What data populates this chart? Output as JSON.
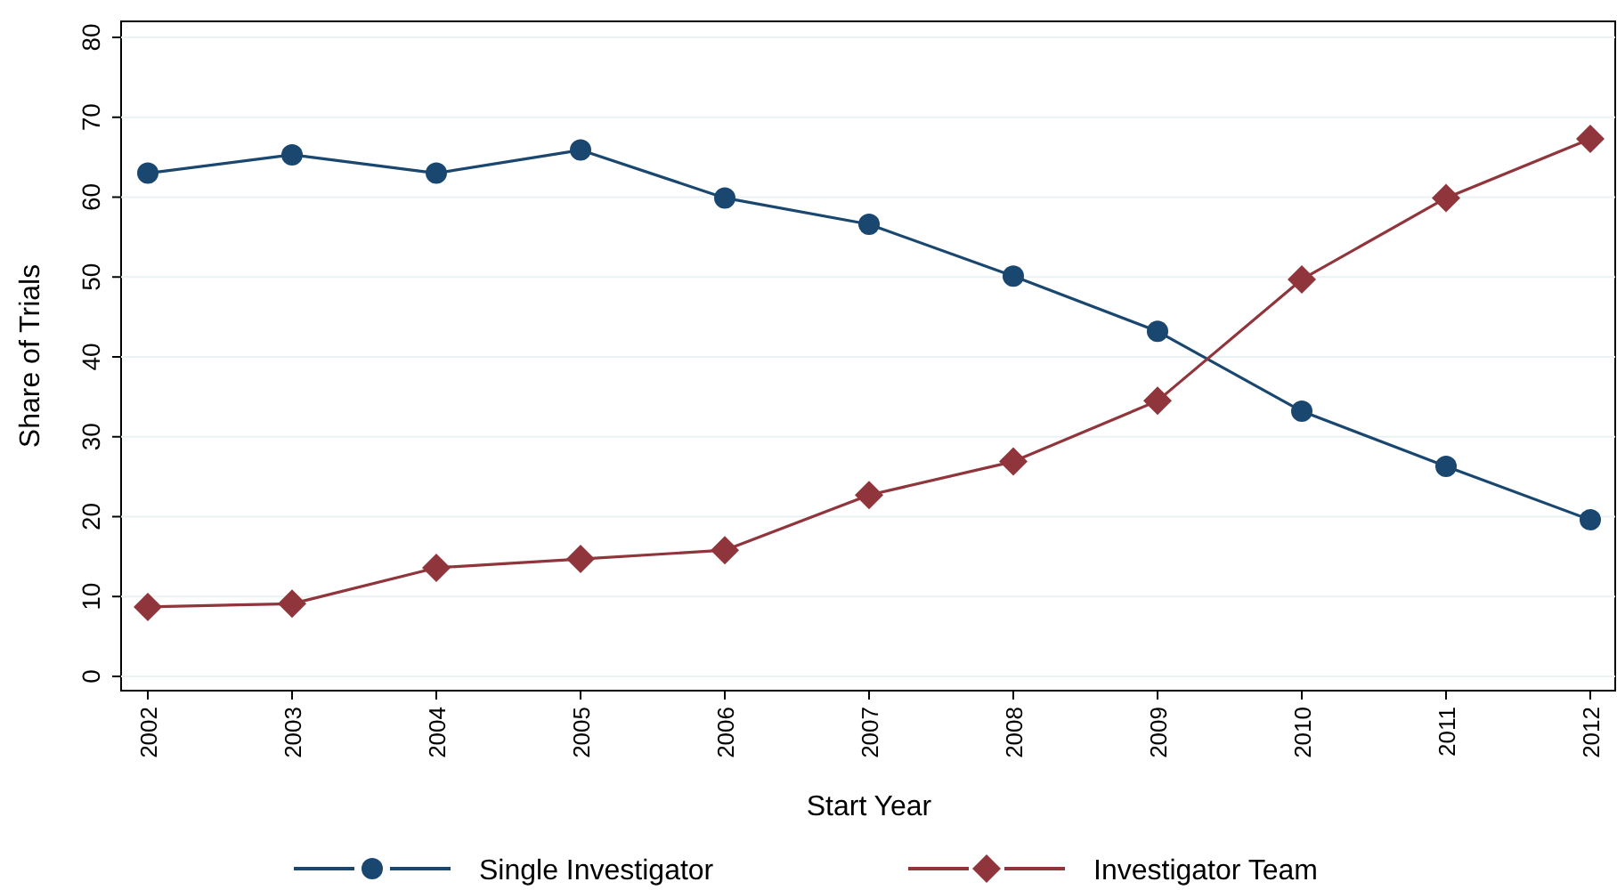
{
  "chart_data": {
    "type": "line",
    "xlabel": "Start Year",
    "ylabel": "Share of Trials",
    "categories": [
      "2002",
      "2003",
      "2004",
      "2005",
      "2006",
      "2007",
      "2008",
      "2009",
      "2010",
      "2011",
      "2012"
    ],
    "series": [
      {
        "name": "Single Investigator",
        "color": "#1a476f",
        "marker": "circle",
        "values": [
          63.0,
          65.3,
          63.0,
          65.9,
          59.9,
          56.6,
          50.1,
          43.2,
          33.2,
          26.3,
          19.6
        ]
      },
      {
        "name": "Investigator Team",
        "color": "#90353b",
        "marker": "diamond",
        "values": [
          8.7,
          9.1,
          13.6,
          14.7,
          15.8,
          22.7,
          26.9,
          34.5,
          49.7,
          59.9,
          67.3
        ]
      }
    ],
    "ylim": [
      0,
      80
    ],
    "yticks": [
      0,
      10,
      20,
      30,
      40,
      50,
      60,
      70,
      80
    ],
    "grid": "y",
    "legend": "bottom",
    "line_style": "solid"
  }
}
